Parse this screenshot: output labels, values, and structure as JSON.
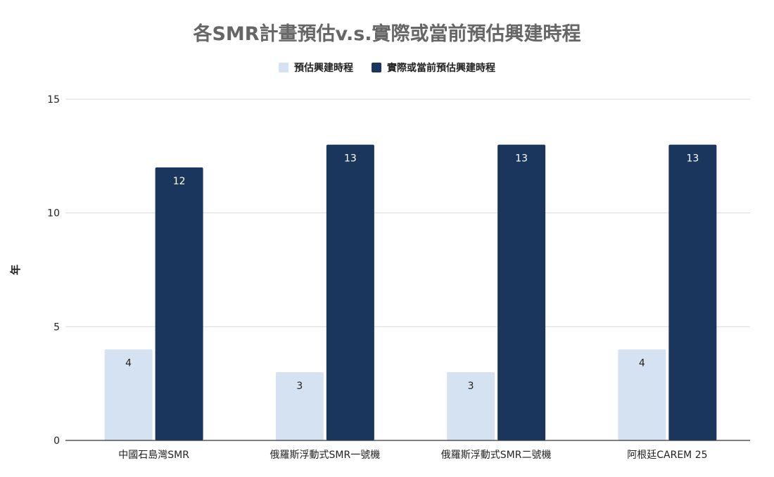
{
  "chart_data": {
    "type": "bar",
    "title": "各SMR計畫預估v.s.實際或當前預估興建時程",
    "ylabel": "年",
    "xlabel": "",
    "ylim": [
      0,
      15
    ],
    "yticks": [
      0,
      5,
      10,
      15
    ],
    "grid": true,
    "legend": "top",
    "categories": [
      "中國石島灣SMR",
      "俄羅斯浮動式SMR一號機",
      "俄羅斯浮動式SMR二號機",
      "阿根廷CAREM 25"
    ],
    "series": [
      {
        "name": "預估興建時程",
        "values": [
          4,
          3,
          3,
          4
        ],
        "color": "#d4e2f1",
        "label_color": "#222222"
      },
      {
        "name": "實際或當前預估興建時程",
        "values": [
          12,
          13,
          13,
          13
        ],
        "color": "#1b365d",
        "label_color": "#ffffff"
      }
    ]
  }
}
